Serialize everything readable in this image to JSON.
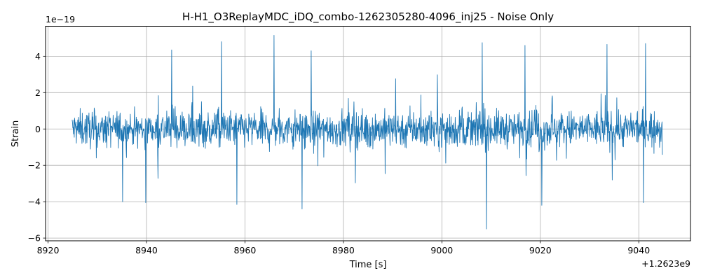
{
  "chart_data": {
    "type": "line",
    "title": "H-H1_O3ReplayMDC_iDQ_combo-1262305280-4096_inj25 - Noise Only",
    "xlabel": "Time [s]",
    "ylabel": "Strain",
    "x_offset_label": "+1.2623e9",
    "y_scale_label": "1e−19",
    "xlim": [
      8919.5,
      9050.5
    ],
    "ylim": [
      -6.15,
      5.65
    ],
    "x_ticks": [
      8920,
      8940,
      8960,
      8980,
      9000,
      9020,
      9040
    ],
    "x_tick_labels": [
      "8920",
      "8940",
      "8960",
      "8980",
      "9000",
      "9020",
      "9040"
    ],
    "y_ticks": [
      -6,
      -4,
      -2,
      0,
      2,
      4
    ],
    "y_tick_labels": [
      "−6",
      "−4",
      "−2",
      "0",
      "2",
      "4"
    ],
    "grid": true,
    "series": [
      {
        "color": "#1f77b4",
        "x_range": [
          8924.9,
          9044.8
        ],
        "approx_min": -5.5,
        "approx_max": 5.15,
        "typical_band": [
          -1.9,
          1.9
        ],
        "peaks": [
          {
            "x": 8965.9,
            "y": 5.15
          },
          {
            "x": 8955.3,
            "y": 4.8
          },
          {
            "x": 9008.2,
            "y": 4.75
          },
          {
            "x": 9016.9,
            "y": 4.6
          },
          {
            "x": 9041.4,
            "y": 4.7
          },
          {
            "x": 8945.2,
            "y": 4.35
          },
          {
            "x": 8973.4,
            "y": 4.3
          },
          {
            "x": 9033.5,
            "y": 4.65
          },
          {
            "x": 9009.1,
            "y": -5.5
          },
          {
            "x": 8971.6,
            "y": -4.4
          },
          {
            "x": 8958.4,
            "y": -4.15
          },
          {
            "x": 8935.2,
            "y": -4.0
          },
          {
            "x": 8939.8,
            "y": -4.05
          },
          {
            "x": 9020.3,
            "y": -4.2
          },
          {
            "x": 9041.0,
            "y": -4.05
          }
        ]
      }
    ]
  }
}
